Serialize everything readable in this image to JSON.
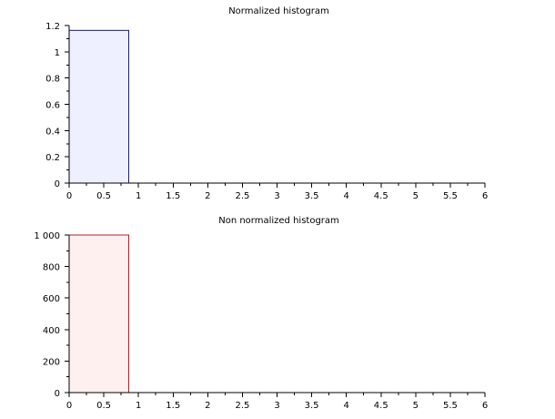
{
  "chart_data": [
    {
      "type": "bar",
      "title": "Normalized histogram",
      "xlabel": "",
      "ylabel": "",
      "xlim": [
        0,
        6
      ],
      "ylim": [
        0,
        1.2
      ],
      "x_ticks": [
        0,
        0.5,
        1,
        1.5,
        2,
        2.5,
        3,
        3.5,
        4,
        4.5,
        5,
        5.5,
        6
      ],
      "x_tick_labels": [
        "0",
        "0.5",
        "1",
        "1.5",
        "2",
        "2.5",
        "3",
        "3.5",
        "4",
        "4.5",
        "5",
        "5.5",
        "6"
      ],
      "y_ticks": [
        0,
        0.2,
        0.4,
        0.6,
        0.8,
        1,
        1.2
      ],
      "y_tick_labels": [
        "0",
        "0.2",
        "0.4",
        "0.6",
        "0.8",
        "1",
        "1.2"
      ],
      "bins": [
        {
          "x0": 0,
          "x1": 0.86,
          "value": 1.163
        }
      ],
      "grid": false,
      "colors": {
        "fill": "#eeefff",
        "stroke": "#1f1f6b"
      }
    },
    {
      "type": "bar",
      "title": "Non normalized histogram",
      "xlabel": "",
      "ylabel": "",
      "xlim": [
        0,
        6
      ],
      "ylim": [
        0,
        1000
      ],
      "x_ticks": [
        0,
        0.5,
        1,
        1.5,
        2,
        2.5,
        3,
        3.5,
        4,
        4.5,
        5,
        5.5,
        6
      ],
      "x_tick_labels": [
        "0",
        "0.5",
        "1",
        "1.5",
        "2",
        "2.5",
        "3",
        "3.5",
        "4",
        "4.5",
        "5",
        "5.5",
        "6"
      ],
      "y_ticks": [
        0,
        200,
        400,
        600,
        800,
        1000
      ],
      "y_tick_labels": [
        "0",
        "200",
        "400",
        "600",
        "800",
        "1 000"
      ],
      "bins": [
        {
          "x0": 0,
          "x1": 0.86,
          "value": 1000
        }
      ],
      "grid": false,
      "colors": {
        "fill": "#fff0f0",
        "stroke": "#b0222a"
      }
    }
  ]
}
